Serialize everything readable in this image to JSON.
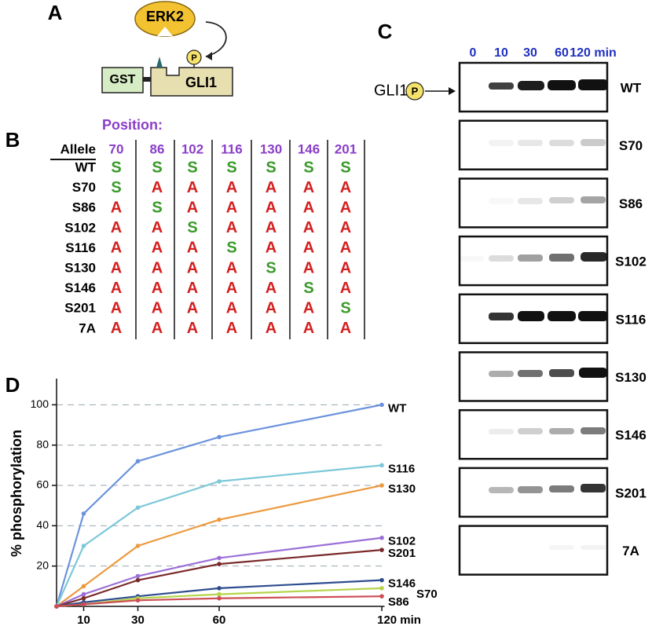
{
  "panel_labels": [
    "A",
    "B",
    "C",
    "D"
  ],
  "schematic": {
    "kinase": "ERK2",
    "tag": "GST",
    "substrate": "GLI1",
    "phospho": "P"
  },
  "table": {
    "position_label": "Position:",
    "header": "Allele",
    "positions": [
      "70",
      "86",
      "102",
      "116",
      "130",
      "146",
      "201"
    ],
    "rows": [
      [
        "WT",
        "S",
        "S",
        "S",
        "S",
        "S",
        "S",
        "S"
      ],
      [
        "S70",
        "S",
        "A",
        "A",
        "A",
        "A",
        "A",
        "A"
      ],
      [
        "S86",
        "A",
        "S",
        "A",
        "A",
        "A",
        "A",
        "A"
      ],
      [
        "S102",
        "A",
        "A",
        "S",
        "A",
        "A",
        "A",
        "A"
      ],
      [
        "S116",
        "A",
        "A",
        "A",
        "S",
        "A",
        "A",
        "A"
      ],
      [
        "S130",
        "A",
        "A",
        "A",
        "A",
        "S",
        "A",
        "A"
      ],
      [
        "S146",
        "A",
        "A",
        "A",
        "A",
        "A",
        "S",
        "A"
      ],
      [
        "S201",
        "A",
        "A",
        "A",
        "A",
        "A",
        "A",
        "S"
      ],
      [
        "7A",
        "A",
        "A",
        "A",
        "A",
        "A",
        "A",
        "A"
      ]
    ]
  },
  "blot": {
    "lanes": [
      "0",
      "10",
      "30",
      "60",
      "120 min"
    ],
    "target": "GLI1",
    "phospho": "P",
    "rows": [
      "WT",
      "S70",
      "S86",
      "S102",
      "S116",
      "S130",
      "S146",
      "S201",
      "7A"
    ]
  },
  "chart_data": {
    "type": "line",
    "y_label": "% phosphorylation",
    "x": [
      0,
      10,
      30,
      60,
      120
    ],
    "xlim": [
      0,
      121
    ],
    "xticks": [
      10,
      30,
      60,
      {
        "value": 120,
        "label": "120 min"
      }
    ],
    "ylim": [
      0,
      113
    ],
    "yticks": [
      20,
      40,
      60,
      80,
      100
    ],
    "grid": true,
    "series": [
      {
        "name": "WT",
        "color": "#6b93dc",
        "values": [
          0,
          46,
          72,
          84,
          100
        ]
      },
      {
        "name": "S116",
        "color": "#7cc8d8",
        "values": [
          0,
          30,
          49,
          62,
          70
        ]
      },
      {
        "name": "S130",
        "color": "#eb9a3e",
        "values": [
          0,
          10,
          30,
          43,
          60
        ]
      },
      {
        "name": "S102",
        "color": "#9b6fd8",
        "values": [
          0,
          6,
          15,
          24,
          34
        ]
      },
      {
        "name": "S201",
        "color": "#7a2a2a",
        "values": [
          0,
          4,
          13,
          21,
          28
        ]
      },
      {
        "name": "S146",
        "color": "#2e4d8f",
        "values": [
          0,
          2,
          5,
          9,
          13
        ]
      },
      {
        "name": "S70",
        "color": "#b5d44a",
        "values": [
          0,
          1,
          4,
          6,
          9
        ]
      },
      {
        "name": "S86",
        "color": "#cc4d55",
        "values": [
          0,
          1,
          3,
          4,
          5
        ]
      }
    ]
  }
}
